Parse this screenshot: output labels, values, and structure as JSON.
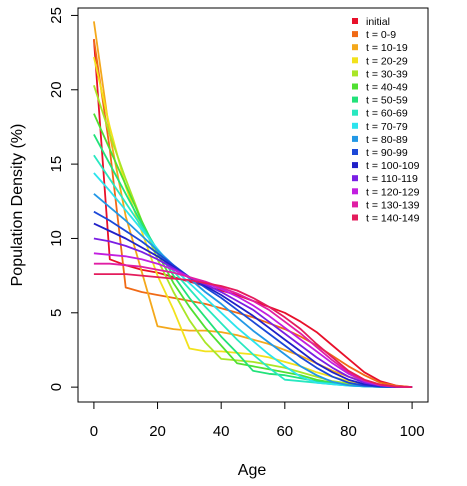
{
  "chart_data": {
    "type": "line",
    "title": "",
    "xlabel": "Age",
    "ylabel": "Population Density (%)",
    "xlim": [
      -5,
      105
    ],
    "ylim": [
      -1,
      25.5
    ],
    "xticks": [
      0,
      20,
      40,
      60,
      80,
      100
    ],
    "yticks": [
      0,
      5,
      10,
      15,
      20,
      25
    ],
    "grid": false,
    "legend_position": "top-right",
    "x": [
      0,
      5,
      10,
      15,
      20,
      25,
      30,
      35,
      40,
      45,
      50,
      55,
      60,
      65,
      70,
      75,
      80,
      85,
      90,
      95,
      100
    ],
    "series": [
      {
        "name": "initial",
        "color": "#e8102a",
        "values": [
          23.4,
          8.6,
          8.2,
          7.9,
          7.7,
          7.4,
          7.1,
          6.8,
          6.5,
          6.2,
          5.8,
          5.4,
          5.0,
          4.4,
          3.7,
          2.8,
          1.9,
          1.0,
          0.4,
          0.1,
          0.0
        ]
      },
      {
        "name": "t = 0-9",
        "color": "#f06a16",
        "values": [
          23.4,
          16.0,
          6.7,
          6.4,
          6.2,
          6.0,
          5.8,
          5.6,
          5.3,
          5.0,
          4.7,
          4.3,
          3.9,
          3.4,
          2.8,
          2.1,
          1.4,
          0.8,
          0.3,
          0.1,
          0.0
        ]
      },
      {
        "name": "t = 10-19",
        "color": "#f4a81b",
        "values": [
          24.6,
          17.0,
          11.5,
          7.8,
          4.1,
          3.9,
          3.8,
          3.8,
          3.7,
          3.5,
          3.2,
          2.9,
          2.5,
          2.1,
          1.6,
          1.1,
          0.7,
          0.4,
          0.15,
          0.05,
          0.0
        ]
      },
      {
        "name": "t = 20-29",
        "color": "#f2e21c",
        "values": [
          22.2,
          17.5,
          13.5,
          10.5,
          7.5,
          5.2,
          2.6,
          2.4,
          2.4,
          2.3,
          2.2,
          2.0,
          1.7,
          1.4,
          1.0,
          0.7,
          0.4,
          0.2,
          0.08,
          0.02,
          0.0
        ]
      },
      {
        "name": "t = 30-39",
        "color": "#a9e627",
        "values": [
          20.3,
          17.0,
          14.0,
          11.2,
          8.6,
          6.4,
          4.5,
          3.0,
          1.9,
          1.8,
          1.7,
          1.5,
          1.3,
          1.0,
          0.7,
          0.4,
          0.25,
          0.12,
          0.05,
          0.01,
          0.0
        ]
      },
      {
        "name": "t = 40-49",
        "color": "#50e032",
        "values": [
          18.4,
          16.0,
          13.6,
          11.2,
          9.0,
          7.0,
          5.4,
          4.0,
          2.8,
          1.6,
          1.4,
          1.2,
          1.0,
          0.8,
          0.5,
          0.3,
          0.15,
          0.07,
          0.03,
          0.01,
          0.0
        ]
      },
      {
        "name": "t = 50-59",
        "color": "#22e27a",
        "values": [
          17.0,
          15.0,
          13.0,
          11.0,
          9.2,
          7.5,
          6.0,
          4.7,
          3.4,
          2.3,
          1.1,
          0.9,
          0.8,
          0.6,
          0.4,
          0.25,
          0.12,
          0.05,
          0.02,
          0.01,
          0.0
        ]
      },
      {
        "name": "t = 60-69",
        "color": "#28e8c0",
        "values": [
          15.6,
          14.0,
          12.4,
          10.8,
          9.2,
          7.8,
          6.6,
          5.4,
          4.3,
          3.2,
          2.2,
          1.3,
          0.5,
          0.4,
          0.3,
          0.2,
          0.1,
          0.05,
          0.02,
          0.01,
          0.0
        ]
      },
      {
        "name": "t = 70-79",
        "color": "#2ce4ee",
        "values": [
          14.4,
          13.2,
          11.9,
          10.6,
          9.3,
          8.0,
          7.0,
          6.0,
          5.0,
          4.0,
          3.1,
          2.2,
          1.4,
          0.7,
          0.3,
          0.2,
          0.1,
          0.05,
          0.02,
          0.01,
          0.0
        ]
      },
      {
        "name": "t = 80-89",
        "color": "#2298e6",
        "values": [
          13.0,
          12.1,
          11.2,
          10.2,
          9.2,
          8.2,
          7.3,
          6.4,
          5.6,
          4.7,
          3.8,
          3.0,
          2.2,
          1.4,
          0.8,
          0.35,
          0.12,
          0.05,
          0.02,
          0.01,
          0.0
        ]
      },
      {
        "name": "t = 90-99",
        "color": "#1c48d8",
        "values": [
          11.8,
          11.2,
          10.5,
          9.8,
          9.0,
          8.2,
          7.4,
          6.7,
          6.0,
          5.2,
          4.4,
          3.6,
          2.8,
          2.0,
          1.3,
          0.7,
          0.3,
          0.1,
          0.03,
          0.01,
          0.0
        ]
      },
      {
        "name": "t = 100-109",
        "color": "#2020c8",
        "values": [
          11.0,
          10.5,
          10.0,
          9.4,
          8.8,
          8.1,
          7.4,
          6.8,
          6.2,
          5.5,
          4.8,
          4.0,
          3.2,
          2.4,
          1.6,
          1.0,
          0.5,
          0.2,
          0.06,
          0.01,
          0.0
        ]
      },
      {
        "name": "t = 110-119",
        "color": "#7a1ee4",
        "values": [
          10.0,
          9.8,
          9.5,
          9.1,
          8.6,
          8.0,
          7.4,
          6.9,
          6.4,
          5.8,
          5.2,
          4.4,
          3.6,
          2.8,
          2.0,
          1.3,
          0.7,
          0.3,
          0.1,
          0.02,
          0.0
        ]
      },
      {
        "name": "t = 120-129",
        "color": "#c21ee0",
        "values": [
          9.0,
          8.9,
          8.8,
          8.6,
          8.3,
          7.9,
          7.4,
          7.0,
          6.6,
          6.1,
          5.5,
          4.8,
          4.0,
          3.2,
          2.4,
          1.6,
          0.9,
          0.4,
          0.12,
          0.03,
          0.0
        ]
      },
      {
        "name": "t = 130-139",
        "color": "#e01ea4",
        "values": [
          8.3,
          8.3,
          8.2,
          8.1,
          7.9,
          7.7,
          7.4,
          7.1,
          6.7,
          6.3,
          5.8,
          5.2,
          4.4,
          3.6,
          2.7,
          1.8,
          1.0,
          0.45,
          0.15,
          0.03,
          0.0
        ]
      },
      {
        "name": "t = 140-149",
        "color": "#e41c5c",
        "values": [
          7.6,
          7.6,
          7.6,
          7.5,
          7.4,
          7.3,
          7.2,
          7.0,
          6.8,
          6.5,
          6.0,
          5.4,
          4.7,
          3.9,
          2.9,
          2.0,
          1.1,
          0.5,
          0.17,
          0.04,
          0.0
        ]
      }
    ]
  }
}
